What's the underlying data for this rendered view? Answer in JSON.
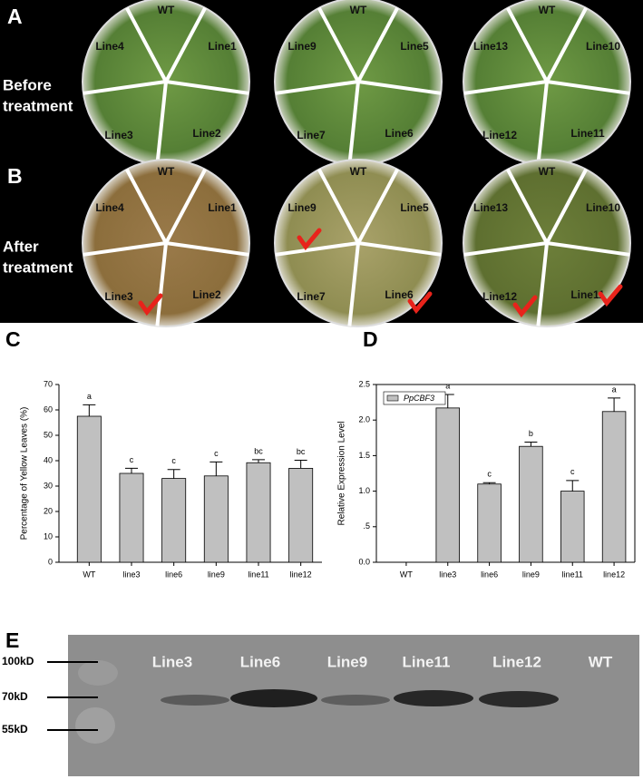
{
  "panel_labels": [
    "A",
    "B",
    "C",
    "D",
    "E"
  ],
  "photos": {
    "rows": [
      {
        "label": [
          "Before",
          "treatment"
        ]
      },
      {
        "label": [
          "After",
          "treatment"
        ]
      }
    ],
    "plates": [
      [
        "WT",
        "Line1",
        "Line2",
        "Line3",
        "Line4"
      ],
      [
        "WT",
        "Line5",
        "Line6",
        "Line7",
        "Line9"
      ],
      [
        "WT",
        "Line10",
        "Line11",
        "Line12",
        "Line13"
      ]
    ]
  },
  "chart_data": [
    {
      "type": "bar",
      "y_label": "Percentage of Yellow Leaves (%)",
      "categories": [
        "WT",
        "line3",
        "line6",
        "line9",
        "line11",
        "line12"
      ],
      "values": [
        57.5,
        35,
        33,
        34,
        39.2,
        37
      ],
      "errors": [
        4.5,
        2,
        3.5,
        5.5,
        1.2,
        3.2
      ],
      "significance": [
        "a",
        "c",
        "c",
        "c",
        "bc",
        "bc"
      ],
      "color": "#c0c0c0",
      "ylim": [
        0,
        70
      ],
      "yticks": [
        0,
        10,
        20,
        30,
        40,
        50,
        60,
        70
      ]
    },
    {
      "type": "bar",
      "y_label": "Relative Expression Level",
      "categories": [
        "WT",
        "line3",
        "line6",
        "line9",
        "line11",
        "line12"
      ],
      "series": [
        {
          "name": "PpCBF3",
          "color": "#c0c0c0",
          "values": [
            0,
            2.17,
            1.1,
            1.63,
            1.0,
            2.12
          ],
          "errors": [
            null,
            0.19,
            0.02,
            0.06,
            0.15,
            0.19
          ]
        }
      ],
      "significance": [
        null,
        "a",
        "c",
        "b",
        "c",
        "a"
      ],
      "ylim": [
        0,
        2.5
      ],
      "yticks": [
        {
          "value": 0,
          "label": "0.0"
        },
        {
          "value": 0.5,
          "label": ".5"
        },
        {
          "value": 1,
          "label": "1.0"
        },
        1.5,
        {
          "value": 2,
          "label": "2.0"
        },
        2.5
      ]
    }
  ],
  "blot": {
    "markers": [
      "100kD",
      "70kD",
      "55kD"
    ],
    "lanes": [
      "Line3",
      "Line6",
      "Line9",
      "Line11",
      "Line12",
      "WT"
    ]
  }
}
